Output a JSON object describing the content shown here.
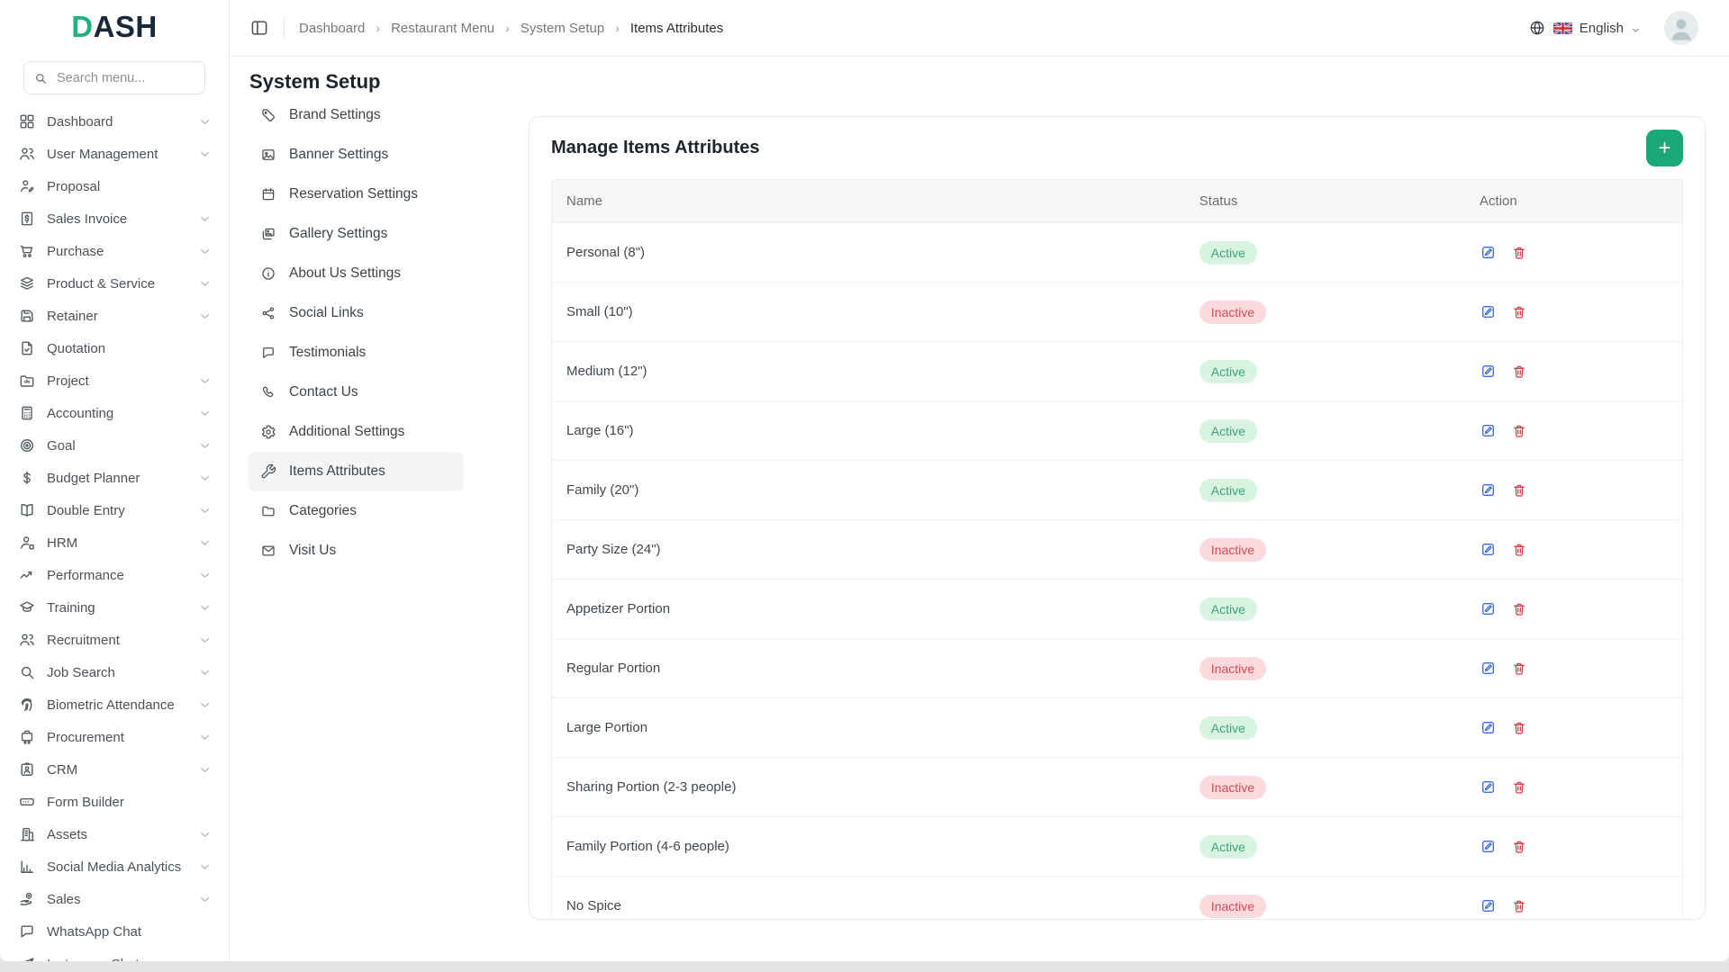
{
  "brand": {
    "logo_first": "D",
    "logo_rest": "ASH"
  },
  "sidebar": {
    "search_placeholder": "Search menu...",
    "items": [
      {
        "label": "Dashboard",
        "icon": "grid-icon",
        "chevron": true
      },
      {
        "label": "User Management",
        "icon": "users-icon",
        "chevron": true
      },
      {
        "label": "Proposal",
        "icon": "proposal-icon",
        "chevron": false
      },
      {
        "label": "Sales Invoice",
        "icon": "invoice-icon",
        "chevron": true
      },
      {
        "label": "Purchase",
        "icon": "cart-icon",
        "chevron": true
      },
      {
        "label": "Product & Service",
        "icon": "layers-icon",
        "chevron": true
      },
      {
        "label": "Retainer",
        "icon": "retainer-icon",
        "chevron": true
      },
      {
        "label": "Quotation",
        "icon": "quotation-icon",
        "chevron": false
      },
      {
        "label": "Project",
        "icon": "project-icon",
        "chevron": true
      },
      {
        "label": "Accounting",
        "icon": "calculator-icon",
        "chevron": true
      },
      {
        "label": "Goal",
        "icon": "target-icon",
        "chevron": true
      },
      {
        "label": "Budget Planner",
        "icon": "dollar-icon",
        "chevron": true
      },
      {
        "label": "Double Entry",
        "icon": "book-icon",
        "chevron": true
      },
      {
        "label": "HRM",
        "icon": "person-icon",
        "chevron": true
      },
      {
        "label": "Performance",
        "icon": "trend-icon",
        "chevron": true
      },
      {
        "label": "Training",
        "icon": "training-icon",
        "chevron": true
      },
      {
        "label": "Recruitment",
        "icon": "recruitment-icon",
        "chevron": true
      },
      {
        "label": "Job Search",
        "icon": "search-icon",
        "chevron": true
      },
      {
        "label": "Biometric Attendance",
        "icon": "fingerprint-icon",
        "chevron": true
      },
      {
        "label": "Procurement",
        "icon": "procurement-icon",
        "chevron": true
      },
      {
        "label": "CRM",
        "icon": "crm-icon",
        "chevron": true
      },
      {
        "label": "Form Builder",
        "icon": "form-icon",
        "chevron": false
      },
      {
        "label": "Assets",
        "icon": "assets-icon",
        "chevron": true
      },
      {
        "label": "Social Media Analytics",
        "icon": "analytics-icon",
        "chevron": true
      },
      {
        "label": "Sales",
        "icon": "sales-icon",
        "chevron": true
      },
      {
        "label": "WhatsApp Chat",
        "icon": "whatsapp-icon",
        "chevron": false
      },
      {
        "label": "Instagram Chat",
        "icon": "instagram-icon",
        "chevron": false
      }
    ]
  },
  "topbar": {
    "breadcrumb": [
      "Dashboard",
      "Restaurant Menu",
      "System Setup",
      "Items Attributes"
    ],
    "language": "English"
  },
  "page": {
    "title": "System Setup",
    "menu": [
      {
        "label": "Brand Settings",
        "icon": "tag-icon",
        "active": false
      },
      {
        "label": "Banner Settings",
        "icon": "image-icon",
        "active": false
      },
      {
        "label": "Reservation Settings",
        "icon": "calendar-icon",
        "active": false
      },
      {
        "label": "Gallery Settings",
        "icon": "gallery-icon",
        "active": false
      },
      {
        "label": "About Us Settings",
        "icon": "info-icon",
        "active": false
      },
      {
        "label": "Social Links",
        "icon": "share-icon",
        "active": false
      },
      {
        "label": "Testimonials",
        "icon": "chat-icon",
        "active": false
      },
      {
        "label": "Contact Us",
        "icon": "phone-icon",
        "active": false
      },
      {
        "label": "Additional Settings",
        "icon": "gear-icon",
        "active": false
      },
      {
        "label": "Items Attributes",
        "icon": "wrench-icon",
        "active": true
      },
      {
        "label": "Categories",
        "icon": "folder-icon",
        "active": false
      },
      {
        "label": "Visit Us",
        "icon": "mail-icon",
        "active": false
      }
    ],
    "panel": {
      "heading": "Manage Items Attributes",
      "add_button": "+",
      "table": {
        "columns": [
          "Name",
          "Status",
          "Action"
        ],
        "rows": [
          {
            "name": "Personal (8\")",
            "status": "Active"
          },
          {
            "name": "Small (10\")",
            "status": "Inactive"
          },
          {
            "name": "Medium (12\")",
            "status": "Active"
          },
          {
            "name": "Large (16\")",
            "status": "Active"
          },
          {
            "name": "Family (20\")",
            "status": "Active"
          },
          {
            "name": "Party Size (24\")",
            "status": "Inactive"
          },
          {
            "name": "Appetizer Portion",
            "status": "Active"
          },
          {
            "name": "Regular Portion",
            "status": "Inactive"
          },
          {
            "name": "Large Portion",
            "status": "Active"
          },
          {
            "name": "Sharing Portion (2-3 people)",
            "status": "Inactive"
          },
          {
            "name": "Family Portion (4-6 people)",
            "status": "Active"
          },
          {
            "name": "No Spice",
            "status": "Inactive"
          }
        ]
      }
    }
  },
  "colors": {
    "accent_green": "#1aa878",
    "logo_green": "#1fb27c",
    "logo_dark": "#16283a",
    "active_badge_bg": "#d9f3e3",
    "active_badge_text": "#3fa56f",
    "inactive_badge_bg": "#fbd9dc",
    "inactive_badge_text": "#d84c57",
    "edit_icon_blue": "#3a6bd8",
    "delete_icon_red": "#da3b47"
  }
}
